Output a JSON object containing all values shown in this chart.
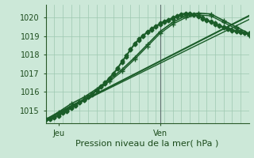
{
  "bg_color": "#cce8d8",
  "grid_color": "#9dc8b0",
  "line_color": "#1a5c28",
  "xlabel": "Pression niveau de la mer( hPa )",
  "xlabel_fontsize": 8,
  "yticks": [
    1015,
    1016,
    1017,
    1018,
    1019,
    1020
  ],
  "ylim": [
    1014.3,
    1020.7
  ],
  "xlim": [
    0,
    48
  ],
  "xtick_positions": [
    3,
    27
  ],
  "xtick_labels": [
    "Jeu",
    "Ven"
  ],
  "ven_x": 27,
  "n_vgrid": 24,
  "n_hgrid": 6,
  "series": [
    {
      "x": [
        0,
        1,
        2,
        3,
        4,
        5,
        6,
        7,
        8,
        9,
        10,
        11,
        12,
        13,
        14,
        15,
        16,
        17,
        18,
        19,
        20,
        21,
        22,
        23,
        24,
        25,
        26,
        27,
        28,
        29,
        30,
        31,
        32,
        33,
        34,
        35,
        36,
        37,
        38,
        39,
        40,
        41,
        42,
        43,
        44,
        45,
        46,
        47,
        48
      ],
      "y": [
        1014.5,
        1014.55,
        1014.65,
        1014.75,
        1014.9,
        1015.0,
        1015.15,
        1015.3,
        1015.45,
        1015.6,
        1015.75,
        1015.9,
        1016.1,
        1016.3,
        1016.5,
        1016.75,
        1017.0,
        1017.3,
        1017.65,
        1017.95,
        1018.3,
        1018.6,
        1018.85,
        1019.05,
        1019.25,
        1019.4,
        1019.55,
        1019.7,
        1019.8,
        1019.9,
        1020.0,
        1020.1,
        1020.2,
        1020.25,
        1020.25,
        1020.2,
        1020.1,
        1020.0,
        1019.9,
        1019.8,
        1019.7,
        1019.6,
        1019.5,
        1019.42,
        1019.35,
        1019.3,
        1019.25,
        1019.2,
        1019.15
      ],
      "marker": "D",
      "markersize": 2.5,
      "lw": 1.0
    },
    {
      "x": [
        0,
        1,
        2,
        3,
        4,
        5,
        6,
        7,
        8,
        9,
        10,
        11,
        12,
        13,
        14,
        15,
        16,
        17,
        18,
        19,
        20,
        21,
        22,
        23,
        24,
        25,
        26,
        27,
        28,
        29,
        30,
        31,
        32,
        33,
        34,
        35,
        36,
        37,
        38,
        39,
        40,
        41,
        42,
        43,
        44,
        45,
        46,
        47,
        48
      ],
      "y": [
        1014.5,
        1014.5,
        1014.6,
        1014.7,
        1014.85,
        1014.95,
        1015.1,
        1015.25,
        1015.4,
        1015.55,
        1015.7,
        1015.85,
        1016.05,
        1016.25,
        1016.45,
        1016.7,
        1016.95,
        1017.25,
        1017.6,
        1017.9,
        1018.25,
        1018.55,
        1018.8,
        1019.0,
        1019.2,
        1019.35,
        1019.5,
        1019.65,
        1019.75,
        1019.85,
        1019.95,
        1020.05,
        1020.15,
        1020.2,
        1020.2,
        1020.15,
        1020.05,
        1019.95,
        1019.85,
        1019.75,
        1019.65,
        1019.55,
        1019.45,
        1019.37,
        1019.3,
        1019.25,
        1019.2,
        1019.15,
        1019.1
      ],
      "marker": "D",
      "markersize": 2.5,
      "lw": 1.0
    },
    {
      "x": [
        0,
        3,
        6,
        9,
        12,
        15,
        18,
        21,
        24,
        27,
        30,
        33,
        36,
        39,
        42,
        45,
        48
      ],
      "y": [
        1014.5,
        1014.9,
        1015.35,
        1015.7,
        1016.15,
        1016.65,
        1017.2,
        1017.85,
        1018.55,
        1019.25,
        1019.75,
        1020.1,
        1020.25,
        1020.2,
        1019.85,
        1019.5,
        1019.15
      ],
      "marker": "+",
      "markersize": 4,
      "lw": 1.2
    },
    {
      "x": [
        0,
        3,
        6,
        9,
        12,
        15,
        18,
        21,
        24,
        27,
        30,
        33,
        36,
        39,
        42,
        45,
        48
      ],
      "y": [
        1014.5,
        1014.85,
        1015.25,
        1015.6,
        1016.05,
        1016.55,
        1017.1,
        1017.75,
        1018.45,
        1019.15,
        1019.65,
        1020.0,
        1020.15,
        1020.1,
        1019.75,
        1019.4,
        1019.05
      ],
      "marker": "+",
      "markersize": 4,
      "lw": 1.0
    },
    {
      "x": [
        0,
        48
      ],
      "y": [
        1014.5,
        1020.1
      ],
      "marker": "none",
      "markersize": 0,
      "lw": 1.5
    },
    {
      "x": [
        0,
        48
      ],
      "y": [
        1014.5,
        1019.9
      ],
      "marker": "none",
      "markersize": 0,
      "lw": 1.0
    }
  ]
}
